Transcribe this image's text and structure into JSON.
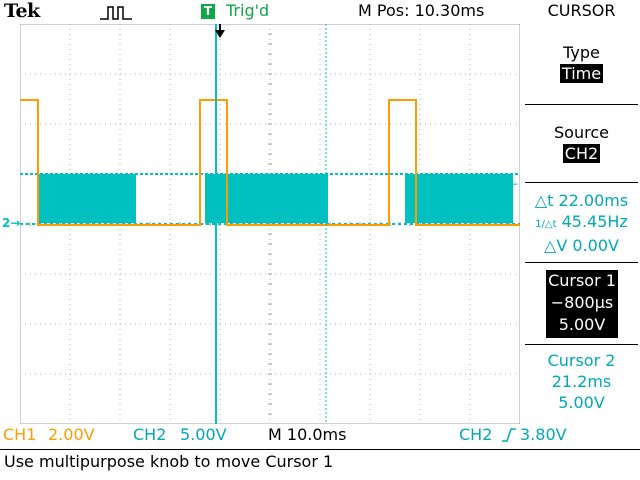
{
  "header": {
    "brand": "Tek",
    "acquisition_icon": "pulse-waveform-icon",
    "trigger_badge": "T",
    "trigger_status": "Trig'd",
    "main_position": "M Pos: 10.30ms",
    "menu_title": "CURSOR"
  },
  "menu": {
    "type_label": "Type",
    "type_value": "Time",
    "source_label": "Source",
    "source_value": "CH2",
    "delta_t": "△t 22.00ms",
    "inv_delta_t": "45.45Hz",
    "inv_delta_t_prefix": "1/△t",
    "delta_v": "△V 0.00V",
    "cursor1_label": "Cursor 1",
    "cursor1_time": "−800µs",
    "cursor1_volts": "5.00V",
    "cursor2_label": "Cursor 2",
    "cursor2_time": "21.2ms",
    "cursor2_volts": "5.00V"
  },
  "footer": {
    "ch1_label": "CH1",
    "ch1_scale": "2.00V",
    "ch2_label": "CH2",
    "ch2_scale": "5.00V",
    "timebase": "M 10.0ms",
    "trigger_source": "CH2",
    "trigger_slope_icon": "rising-edge-icon",
    "trigger_level": "3.80V",
    "message": "Use multipurpose knob to move Cursor 1"
  },
  "markers": {
    "ch2_ground": "2→",
    "trigger_level_arrow": "←"
  },
  "colors": {
    "ch1": "#ff9c00",
    "ch2": "#00c0c0",
    "trigger_green": "#11a64a",
    "grid": "#a0a0a0"
  }
}
